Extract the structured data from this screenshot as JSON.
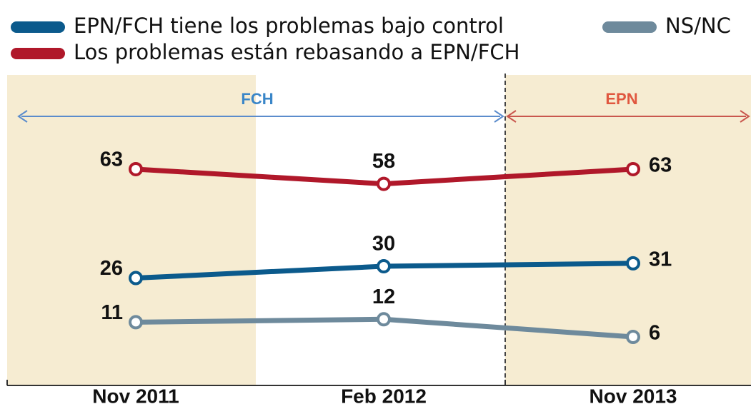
{
  "chart_data": {
    "type": "line",
    "categories": [
      "Nov 2011",
      "Feb 2012",
      "Nov 2013"
    ],
    "series": [
      {
        "name": "EPN/FCH tiene los problemas bajo control",
        "color": "#0b5a8c",
        "values": [
          26,
          30,
          31
        ]
      },
      {
        "name": "Los problemas están rebasando a EPN/FCH",
        "color": "#b0182a",
        "values": [
          63,
          58,
          63
        ]
      },
      {
        "name": "NS/NC",
        "color": "#6e8a9c",
        "values": [
          11,
          12,
          6
        ]
      }
    ],
    "ylim": [
      -10,
      95
    ],
    "annotations": [
      "FCH",
      "EPN"
    ]
  }
}
